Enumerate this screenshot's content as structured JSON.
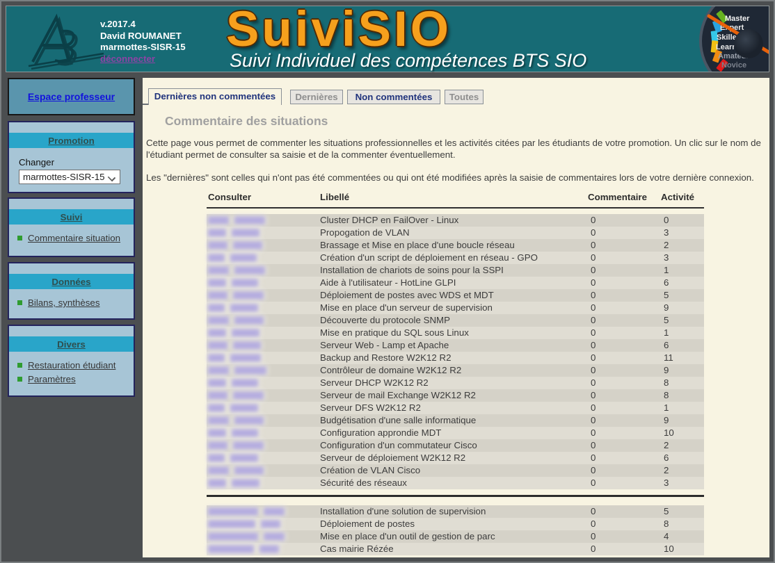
{
  "header": {
    "version": "v.2017.4",
    "user": "David ROUMANET",
    "promotion": "marmottes-SISR-15",
    "logout_label": "déconnecter",
    "title": "SuiviSIO",
    "subtitle": "Suivi Individuel des compétences BTS SIO",
    "gauge": {
      "labels": [
        "Master",
        "Expert",
        "Skilled",
        "Learner",
        "Amateur",
        "Novice"
      ],
      "colors": [
        "#66b31f",
        "#2aa3e0",
        "#35c8e8",
        "#f0c013",
        "#f08c12",
        "#e01a1a"
      ],
      "needle_color": "#e8620a"
    }
  },
  "sidebar": {
    "top_link": "Espace professeur",
    "promotion": {
      "title": "Promotion",
      "changer_label": "Changer",
      "selected": "marmottes-SISR-15"
    },
    "suivi": {
      "title": "Suivi",
      "items": [
        "Commentaire situation"
      ]
    },
    "donnees": {
      "title": "Données",
      "items": [
        "Bilans, synthèses"
      ]
    },
    "divers": {
      "title": "Divers",
      "items": [
        "Restauration étudiant",
        "Paramètres"
      ]
    }
  },
  "tabs": [
    {
      "label": "Dernières non commentées",
      "active": true
    },
    {
      "label": "Dernières",
      "active": false
    },
    {
      "label": "Non commentées",
      "active": false
    },
    {
      "label": "Toutes",
      "active": false
    }
  ],
  "main": {
    "heading": "Commentaire des situations",
    "intro1": "Cette page vous permet de commenter les situations professionnelles et les activités citées par les étudiants de votre promotion. Un clic sur le nom de l'étudiant permet de consulter sa saisie et de la commenter éventuellement.",
    "intro2": "Les \"dernières\" sont celles qui n'ont pas été commentées ou qui ont été modifiées après la saisie de commentaires lors de votre dernière connexion.",
    "table": {
      "headers": [
        "Consulter",
        "Libellé",
        "Commentaire",
        "Activité"
      ],
      "groups": [
        {
          "rows": [
            {
              "label": "Cluster DHCP en FailOver - Linux",
              "commentaire": "0",
              "activite": "0",
              "blur": [
                30,
                44
              ]
            },
            {
              "label": "Propogation de VLAN",
              "commentaire": "0",
              "activite": "3",
              "blur": [
                26,
                40
              ]
            },
            {
              "label": "Brassage et Mise en place d'une boucle réseau",
              "commentaire": "0",
              "activite": "2",
              "blur": [
                28,
                42
              ]
            },
            {
              "label": "Création d'un script de déploiement en réseau - GPO",
              "commentaire": "0",
              "activite": "3",
              "blur": [
                24,
                38
              ]
            },
            {
              "label": "Installation de chariots de soins pour la SSPI",
              "commentaire": "0",
              "activite": "1",
              "blur": [
                30,
                44
              ]
            },
            {
              "label": "Aide à l'utilisateur - HotLine GLPI",
              "commentaire": "0",
              "activite": "6",
              "blur": [
                26,
                38
              ]
            },
            {
              "label": "Déploiement de postes avec WDS et MDT",
              "commentaire": "0",
              "activite": "5",
              "blur": [
                28,
                44
              ]
            },
            {
              "label": "Mise en place d'un serveur de supervision",
              "commentaire": "0",
              "activite": "9",
              "blur": [
                24,
                40
              ]
            },
            {
              "label": "Découverte du protocole SNMP",
              "commentaire": "0",
              "activite": "5",
              "blur": [
                30,
                42
              ]
            },
            {
              "label": "Mise en pratique du SQL sous Linux",
              "commentaire": "0",
              "activite": "1",
              "blur": [
                26,
                40
              ]
            },
            {
              "label": "Serveur Web - Lamp et Apache",
              "commentaire": "0",
              "activite": "6",
              "blur": [
                28,
                40
              ]
            },
            {
              "label": "Backup and Restore W2K12 R2",
              "commentaire": "0",
              "activite": "11",
              "blur": [
                24,
                44
              ]
            },
            {
              "label": "Contrôleur de domaine W2K12 R2",
              "commentaire": "0",
              "activite": "9",
              "blur": [
                30,
                46
              ]
            },
            {
              "label": "Serveur DHCP W2K12 R2",
              "commentaire": "0",
              "activite": "8",
              "blur": [
                26,
                38
              ]
            },
            {
              "label": "Serveur de mail Exchange W2K12 R2",
              "commentaire": "0",
              "activite": "8",
              "blur": [
                28,
                44
              ]
            },
            {
              "label": "Serveur DFS W2K12 R2",
              "commentaire": "0",
              "activite": "1",
              "blur": [
                24,
                40
              ]
            },
            {
              "label": "Budgétisation d'une salle informatique",
              "commentaire": "0",
              "activite": "9",
              "blur": [
                30,
                42
              ]
            },
            {
              "label": "Configuration approndie MDT",
              "commentaire": "0",
              "activite": "10",
              "blur": [
                26,
                38
              ]
            },
            {
              "label": "Configuration d'un commutateur Cisco",
              "commentaire": "0",
              "activite": "2",
              "blur": [
                28,
                44
              ]
            },
            {
              "label": "Serveur de déploiement W2K12 R2",
              "commentaire": "0",
              "activite": "6",
              "blur": [
                24,
                40
              ]
            },
            {
              "label": "Création de VLAN Cisco",
              "commentaire": "0",
              "activite": "2",
              "blur": [
                30,
                42
              ]
            },
            {
              "label": "Sécurité des réseaux",
              "commentaire": "0",
              "activite": "3",
              "blur": [
                26,
                40
              ]
            }
          ]
        },
        {
          "rows": [
            {
              "label": "Installation d'une solution de supervision",
              "commentaire": "0",
              "activite": "5",
              "blur": [
                72,
                30
              ]
            },
            {
              "label": "Déploiement de postes",
              "commentaire": "0",
              "activite": "8",
              "blur": [
                68,
                28
              ]
            },
            {
              "label": "Mise en place d'un outil de gestion de parc",
              "commentaire": "0",
              "activite": "4",
              "blur": [
                72,
                30
              ]
            },
            {
              "label": "Cas mairie Rézée",
              "commentaire": "0",
              "activite": "10",
              "blur": [
                66,
                28
              ]
            }
          ]
        }
      ]
    }
  }
}
